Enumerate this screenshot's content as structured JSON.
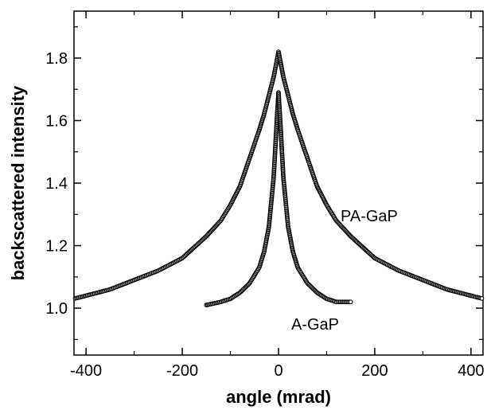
{
  "chart_data": {
    "type": "scatter",
    "xlabel": "angle (mrad)",
    "ylabel": "backscattered intensity",
    "xlim": [
      -425,
      425
    ],
    "ylim": [
      0.85,
      1.95
    ],
    "xticks": [
      -400,
      -200,
      0,
      200,
      400
    ],
    "yticks": [
      1.0,
      1.2,
      1.4,
      1.6,
      1.8
    ],
    "xtick_labels": [
      "-400",
      "-200",
      "0",
      "200",
      "400"
    ],
    "ytick_labels": [
      "1.0",
      "1.2",
      "1.4",
      "1.6",
      "1.8"
    ],
    "grid": false,
    "legend": "none",
    "series": [
      {
        "name": "PA-GaP",
        "x": [
          -425,
          -400,
          -350,
          -300,
          -250,
          -200,
          -150,
          -120,
          -100,
          -80,
          -60,
          -40,
          -30,
          -20,
          -10,
          -5,
          0,
          5,
          10,
          20,
          30,
          40,
          60,
          80,
          100,
          120,
          150,
          200,
          250,
          300,
          350,
          400,
          425
        ],
        "values": [
          1.03,
          1.04,
          1.06,
          1.09,
          1.12,
          1.16,
          1.23,
          1.28,
          1.33,
          1.39,
          1.48,
          1.57,
          1.62,
          1.68,
          1.74,
          1.78,
          1.82,
          1.78,
          1.74,
          1.68,
          1.62,
          1.57,
          1.48,
          1.39,
          1.33,
          1.28,
          1.23,
          1.16,
          1.12,
          1.09,
          1.06,
          1.04,
          1.03
        ],
        "color": "#000000",
        "marker": "open-circle"
      },
      {
        "name": "A-GaP",
        "x": [
          -150,
          -120,
          -100,
          -80,
          -60,
          -40,
          -30,
          -20,
          -10,
          -5,
          0,
          5,
          10,
          20,
          30,
          40,
          60,
          80,
          100,
          120,
          150
        ],
        "values": [
          1.01,
          1.02,
          1.03,
          1.05,
          1.08,
          1.13,
          1.18,
          1.26,
          1.42,
          1.56,
          1.69,
          1.56,
          1.42,
          1.26,
          1.18,
          1.13,
          1.08,
          1.05,
          1.03,
          1.02,
          1.02
        ],
        "color": "#000000",
        "marker": "open-circle"
      }
    ],
    "annotations": [
      "PA-GaP",
      "A-GaP"
    ]
  }
}
